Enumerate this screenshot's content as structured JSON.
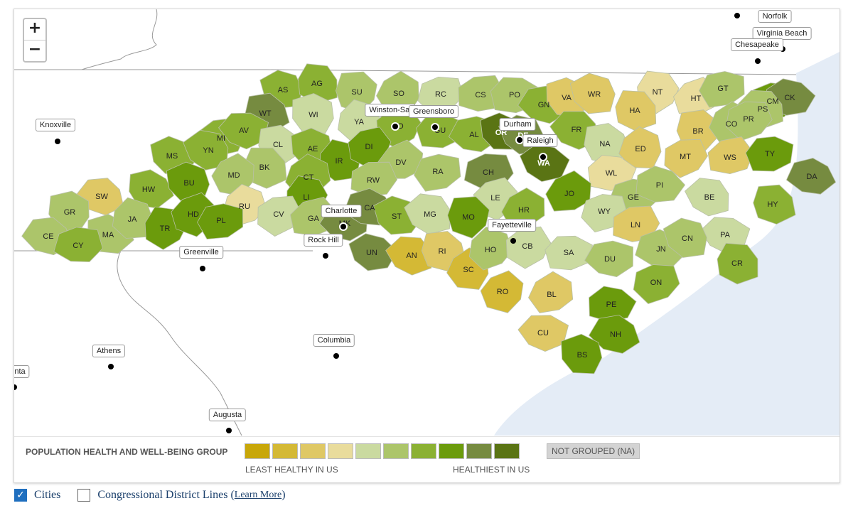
{
  "map": {
    "zoom_in": "+",
    "zoom_out": "−",
    "colors": {
      "ocean": "#e4ecf6",
      "na": "#d3d3d3",
      "g1": "#c8a709",
      "g2": "#d4b935",
      "g3": "#dfc865",
      "g4": "#e9dc9c",
      "g5": "#cadaa0",
      "g6": "#acc56a",
      "g7": "#8bb133",
      "g8": "#6b9b0c",
      "g9": "#768b40",
      "g10": "#5a7414"
    },
    "cities": [
      {
        "name": "Norfolk"
      },
      {
        "name": "Virginia Beach"
      },
      {
        "name": "Chesapeake"
      },
      {
        "name": "Knoxville"
      },
      {
        "name": "Winston-Sal"
      },
      {
        "name": "Greensboro"
      },
      {
        "name": "Durham"
      },
      {
        "name": "Raleigh"
      },
      {
        "name": "Charlotte"
      },
      {
        "name": "Rock Hill"
      },
      {
        "name": "Fayetteville"
      },
      {
        "name": "Greenville"
      },
      {
        "name": "Athens"
      },
      {
        "name": "Columbia"
      },
      {
        "name": "Augusta"
      },
      {
        "name": "nta"
      }
    ],
    "counties": [
      {
        "abbr": "AS",
        "group": "g7"
      },
      {
        "abbr": "AG",
        "group": "g7"
      },
      {
        "abbr": "SU",
        "group": "g6"
      },
      {
        "abbr": "SO",
        "group": "g6"
      },
      {
        "abbr": "RC",
        "group": "g5"
      },
      {
        "abbr": "CS",
        "group": "g6"
      },
      {
        "abbr": "PO",
        "group": "g6"
      },
      {
        "abbr": "GN",
        "group": "g7"
      },
      {
        "abbr": "VA",
        "group": "g3"
      },
      {
        "abbr": "WR",
        "group": "g3"
      },
      {
        "abbr": "NT",
        "group": "g4"
      },
      {
        "abbr": "HT",
        "group": "g4"
      },
      {
        "abbr": "GT",
        "group": "g6"
      },
      {
        "abbr": "CM",
        "group": "g8"
      },
      {
        "abbr": "CK",
        "group": "g9"
      },
      {
        "abbr": "PS",
        "group": "g6"
      },
      {
        "abbr": "WT",
        "group": "g9"
      },
      {
        "abbr": "WI",
        "group": "g5"
      },
      {
        "abbr": "YA",
        "group": "g5"
      },
      {
        "abbr": "FO",
        "group": "g7"
      },
      {
        "abbr": "GU",
        "group": "g7"
      },
      {
        "abbr": "AL",
        "group": "g7"
      },
      {
        "abbr": "OR",
        "group": "g10"
      },
      {
        "abbr": "DE",
        "group": "g9"
      },
      {
        "abbr": "HA",
        "group": "g3"
      },
      {
        "abbr": "BR",
        "group": "g3"
      },
      {
        "abbr": "CO",
        "group": "g6"
      },
      {
        "abbr": "PR",
        "group": "g6"
      },
      {
        "abbr": "MI",
        "group": "g7"
      },
      {
        "abbr": "AV",
        "group": "g7"
      },
      {
        "abbr": "CL",
        "group": "g5"
      },
      {
        "abbr": "AE",
        "group": "g7"
      },
      {
        "abbr": "IR",
        "group": "g8"
      },
      {
        "abbr": "DI",
        "group": "g8"
      },
      {
        "abbr": "DV",
        "group": "g6"
      },
      {
        "abbr": "RA",
        "group": "g6"
      },
      {
        "abbr": "CH",
        "group": "g9"
      },
      {
        "abbr": "WA",
        "group": "g10"
      },
      {
        "abbr": "FR",
        "group": "g7"
      },
      {
        "abbr": "NA",
        "group": "g5"
      },
      {
        "abbr": "ED",
        "group": "g3"
      },
      {
        "abbr": "MT",
        "group": "g3"
      },
      {
        "abbr": "WS",
        "group": "g3"
      },
      {
        "abbr": "TY",
        "group": "g8"
      },
      {
        "abbr": "DA",
        "group": "g9"
      },
      {
        "abbr": "MS",
        "group": "g7"
      },
      {
        "abbr": "YN",
        "group": "g7"
      },
      {
        "abbr": "BK",
        "group": "g6"
      },
      {
        "abbr": "MD",
        "group": "g6"
      },
      {
        "abbr": "CT",
        "group": "g7"
      },
      {
        "abbr": "RW",
        "group": "g6"
      },
      {
        "abbr": "WL",
        "group": "g4"
      },
      {
        "abbr": "SW",
        "group": "g3"
      },
      {
        "abbr": "HW",
        "group": "g7"
      },
      {
        "abbr": "BU",
        "group": "g8"
      },
      {
        "abbr": "LI",
        "group": "g8"
      },
      {
        "abbr": "LE",
        "group": "g5"
      },
      {
        "abbr": "JO",
        "group": "g8"
      },
      {
        "abbr": "GE",
        "group": "g6"
      },
      {
        "abbr": "PI",
        "group": "g6"
      },
      {
        "abbr": "BE",
        "group": "g5"
      },
      {
        "abbr": "HY",
        "group": "g7"
      },
      {
        "abbr": "GR",
        "group": "g6"
      },
      {
        "abbr": "RU",
        "group": "g4"
      },
      {
        "abbr": "CV",
        "group": "g5"
      },
      {
        "abbr": "GA",
        "group": "g6"
      },
      {
        "abbr": "MK",
        "group": "g9"
      },
      {
        "abbr": "CA",
        "group": "g9"
      },
      {
        "abbr": "ST",
        "group": "g7"
      },
      {
        "abbr": "MG",
        "group": "g5"
      },
      {
        "abbr": "MO",
        "group": "g8"
      },
      {
        "abbr": "HR",
        "group": "g7"
      },
      {
        "abbr": "WY",
        "group": "g5"
      },
      {
        "abbr": "LN",
        "group": "g3"
      },
      {
        "abbr": "PA",
        "group": "g5"
      },
      {
        "abbr": "CE",
        "group": "g6"
      },
      {
        "abbr": "MA",
        "group": "g6"
      },
      {
        "abbr": "JA",
        "group": "g6"
      },
      {
        "abbr": "TR",
        "group": "g8"
      },
      {
        "abbr": "HD",
        "group": "g8"
      },
      {
        "abbr": "PL",
        "group": "g8"
      },
      {
        "abbr": "CY",
        "group": "g7"
      },
      {
        "abbr": "UN",
        "group": "g9"
      },
      {
        "abbr": "AN",
        "group": "g2"
      },
      {
        "abbr": "RI",
        "group": "g3"
      },
      {
        "abbr": "SC",
        "group": "g2"
      },
      {
        "abbr": "HO",
        "group": "g6"
      },
      {
        "abbr": "CB",
        "group": "g5"
      },
      {
        "abbr": "SA",
        "group": "g5"
      },
      {
        "abbr": "DU",
        "group": "g6"
      },
      {
        "abbr": "JN",
        "group": "g6"
      },
      {
        "abbr": "CN",
        "group": "g6"
      },
      {
        "abbr": "CR",
        "group": "g7"
      },
      {
        "abbr": "RO",
        "group": "g2"
      },
      {
        "abbr": "BL",
        "group": "g3"
      },
      {
        "abbr": "ON",
        "group": "g7"
      },
      {
        "abbr": "PE",
        "group": "g8"
      },
      {
        "abbr": "CU",
        "group": "g3"
      },
      {
        "abbr": "NH",
        "group": "g8"
      },
      {
        "abbr": "BS",
        "group": "g8"
      }
    ]
  },
  "legend": {
    "title": "POPULATION HEALTH AND WELL-BEING GROUP",
    "groups": [
      "g1",
      "g2",
      "g3",
      "g4",
      "g5",
      "g6",
      "g7",
      "g8",
      "g9",
      "g10"
    ],
    "na_label": "NOT GROUPED (NA)",
    "low_label": "LEAST HEALTHY IN US",
    "high_label": "HEALTHIEST IN US"
  },
  "controls": {
    "cities_label": "Cities",
    "cities_checked": true,
    "districts_label": "Congressional District Lines",
    "learn_more": "Learn More",
    "districts_checked": false
  }
}
